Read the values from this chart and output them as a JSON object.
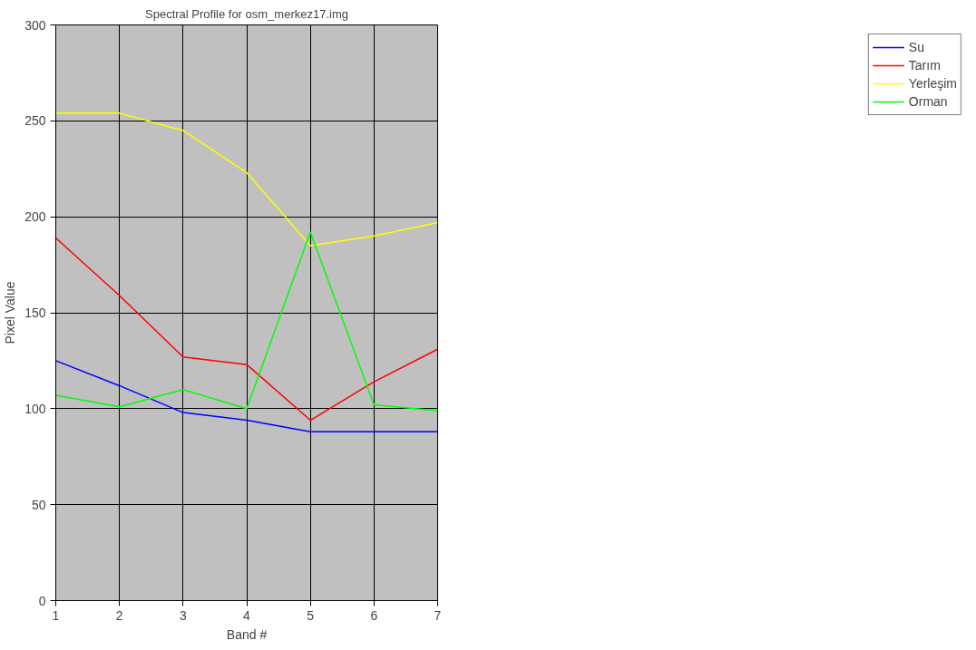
{
  "chart_data": {
    "type": "line",
    "title": "Spectral Profile for osm_merkez17.img",
    "xlabel": "Band #",
    "ylabel": "Pixel Value",
    "x": [
      1,
      2,
      3,
      4,
      5,
      6,
      7
    ],
    "xlim": [
      1,
      7
    ],
    "xticks": [
      1,
      2,
      3,
      4,
      5,
      6,
      7
    ],
    "ylim": [
      0,
      300
    ],
    "yticks": [
      0,
      50,
      100,
      150,
      200,
      250,
      300
    ],
    "grid": true,
    "legend": "right",
    "series": [
      {
        "name": "Su",
        "color": "#0000ff",
        "values": [
          125,
          112,
          98,
          94,
          88,
          88,
          88
        ]
      },
      {
        "name": "Tarım",
        "color": "#ff0000",
        "values": [
          189,
          159,
          127,
          123,
          94,
          114,
          131
        ]
      },
      {
        "name": "Yerleşim",
        "color": "#ffff00",
        "values": [
          254,
          254,
          245,
          223,
          185,
          190,
          197
        ]
      },
      {
        "name": "Orman",
        "color": "#00ff00",
        "values": [
          107,
          101,
          110,
          100,
          192,
          102,
          99
        ]
      }
    ]
  }
}
